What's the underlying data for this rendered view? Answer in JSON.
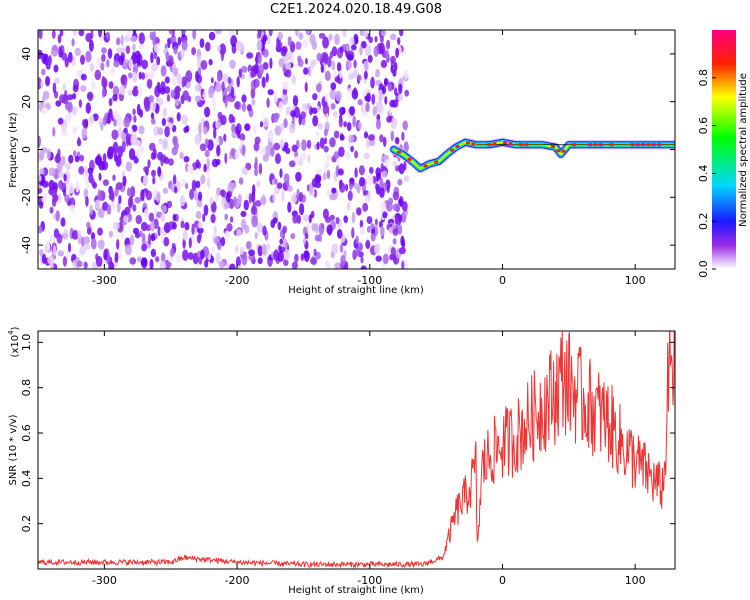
{
  "title": "C2E1.2024.020.18.49.G08",
  "chart_data": [
    {
      "type": "heatmap",
      "xlabel": "Height of straight line (km)",
      "ylabel": "Frequency (Hz)",
      "xlim": [
        -350,
        130
      ],
      "ylim": [
        -50,
        50
      ],
      "xticks": [
        -300,
        -200,
        -100,
        0,
        100
      ],
      "yticks": [
        -40,
        -20,
        0,
        20,
        40
      ],
      "noise_region_x": [
        -350,
        -72
      ],
      "signal_track": {
        "x": [
          -82,
          -75,
          -68,
          -62,
          -55,
          -48,
          -42,
          -35,
          -28,
          -20,
          -10,
          0,
          10,
          20,
          30,
          40,
          44,
          50,
          60,
          80,
          100,
          130
        ],
        "y": [
          0,
          -2,
          -5,
          -8,
          -6,
          -5,
          -2,
          1,
          3,
          2,
          2,
          3,
          2,
          2,
          2,
          1,
          -2,
          2,
          2,
          2,
          2,
          2
        ]
      },
      "colorbar": {
        "label": "Normalized spectral amplitude",
        "range": [
          0,
          1
        ],
        "ticks": [
          "0.0",
          "0.2",
          "0.4",
          "0.6",
          "0.8"
        ]
      }
    },
    {
      "type": "line",
      "xlabel": "Height of straight line (km)",
      "ylabel": "SNR (10 * v/v)",
      "y_scale_note": "(x10",
      "y_scale_exp": "4",
      "xlim": [
        -350,
        130
      ],
      "ylim": [
        0,
        1.05
      ],
      "xticks": [
        -300,
        -200,
        -100,
        0,
        100
      ],
      "yticks": [
        "0.2",
        "0.4",
        "0.6",
        "0.8",
        "1.0"
      ],
      "series": [
        {
          "color": "#ee3333",
          "x": [
            -350,
            -300,
            -250,
            -240,
            -200,
            -150,
            -100,
            -60,
            -45,
            -40,
            -35,
            -30,
            -25,
            -20,
            -19,
            -15,
            -10,
            0,
            10,
            20,
            30,
            40,
            45,
            50,
            55,
            60,
            70,
            80,
            90,
            100,
            110,
            115,
            120,
            122,
            125,
            130
          ],
          "values": [
            0.03,
            0.03,
            0.03,
            0.05,
            0.03,
            0.02,
            0.02,
            0.02,
            0.05,
            0.15,
            0.25,
            0.3,
            0.35,
            0.45,
            0.1,
            0.45,
            0.5,
            0.55,
            0.58,
            0.65,
            0.72,
            0.78,
            0.85,
            0.82,
            0.78,
            0.75,
            0.7,
            0.65,
            0.55,
            0.48,
            0.42,
            0.38,
            0.36,
            0.4,
            0.85,
            0.9
          ]
        }
      ]
    }
  ]
}
